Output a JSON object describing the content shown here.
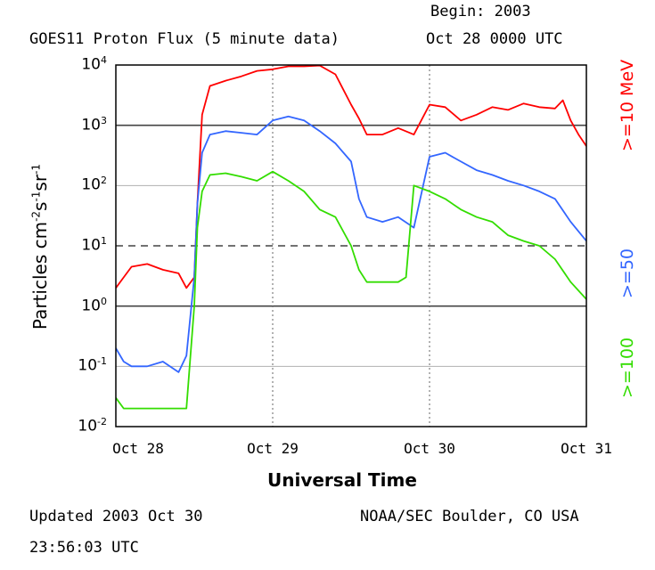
{
  "header": {
    "title": "GOES11 Proton Flux (5 minute data)",
    "begin_label": "Begin: 2003",
    "begin_date": "Oct 28 0000 UTC"
  },
  "footer": {
    "updated_line1": "Updated 2003 Oct 30",
    "updated_line2": "23:56:03 UTC",
    "credit": "NOAA/SEC Boulder, CO USA"
  },
  "chart_data": {
    "type": "line",
    "title": "GOES11 Proton Flux (5 minute data)",
    "xlabel": "Universal Time",
    "ylabel": "Particles cm⁻²s⁻¹sr⁻¹",
    "y_scale": "log",
    "ylim": [
      0.01,
      10000
    ],
    "xlim": [
      0,
      3
    ],
    "x_tick_labels": [
      "Oct 28",
      "Oct 29",
      "Oct 30",
      "Oct 31"
    ],
    "y_tick_labels": [
      {
        "base": "10",
        "exp": "-2"
      },
      {
        "base": "10",
        "exp": "-1"
      },
      {
        "base": "10",
        "exp": "0"
      },
      {
        "base": "10",
        "exp": "1"
      },
      {
        "base": "10",
        "exp": "2"
      },
      {
        "base": "10",
        "exp": "3"
      },
      {
        "base": "10",
        "exp": "4"
      }
    ],
    "legend": [
      "Colors: red, blue, green"
    ],
    "legend_entries": [
      {
        "label": ">=10 MeV",
        "color": "#ff0000"
      },
      {
        "label": ">=50",
        "color": "#3366ff"
      },
      {
        "label": ">=100",
        "color": "#33dd00"
      }
    ],
    "reference_lines": [
      {
        "y": 1000,
        "style": "solid"
      },
      {
        "y": 10,
        "style": "dashed"
      },
      {
        "y": 1,
        "style": "solid"
      }
    ],
    "series": [
      {
        "name": ">=10 MeV",
        "color": "#ff0000",
        "x": [
          0.0,
          0.05,
          0.1,
          0.2,
          0.3,
          0.4,
          0.45,
          0.5,
          0.52,
          0.55,
          0.6,
          0.7,
          0.8,
          0.9,
          1.0,
          1.1,
          1.2,
          1.3,
          1.4,
          1.5,
          1.55,
          1.6,
          1.7,
          1.8,
          1.9,
          2.0,
          2.1,
          2.2,
          2.3,
          2.4,
          2.5,
          2.6,
          2.7,
          2.8,
          2.85,
          2.9,
          2.95,
          3.0
        ],
        "y": [
          2,
          3,
          4.5,
          5,
          4,
          3.5,
          2,
          3,
          50,
          1500,
          4500,
          5500,
          6500,
          8000,
          8500,
          9500,
          9500,
          9800,
          7000,
          2200,
          1300,
          700,
          700,
          900,
          700,
          2200,
          2000,
          1200,
          1500,
          2000,
          1800,
          2300,
          2000,
          1900,
          2600,
          1200,
          700,
          450
        ]
      },
      {
        "name": ">=50",
        "color": "#3366ff",
        "x": [
          0.0,
          0.05,
          0.1,
          0.2,
          0.3,
          0.4,
          0.45,
          0.5,
          0.52,
          0.55,
          0.6,
          0.7,
          0.8,
          0.9,
          1.0,
          1.1,
          1.2,
          1.3,
          1.4,
          1.5,
          1.55,
          1.6,
          1.7,
          1.8,
          1.9,
          2.0,
          2.1,
          2.2,
          2.3,
          2.4,
          2.5,
          2.6,
          2.7,
          2.8,
          2.9,
          3.0
        ],
        "y": [
          0.2,
          0.12,
          0.1,
          0.1,
          0.12,
          0.08,
          0.15,
          3,
          50,
          350,
          700,
          800,
          750,
          700,
          1200,
          1400,
          1200,
          800,
          500,
          250,
          60,
          30,
          25,
          30,
          20,
          300,
          350,
          250,
          180,
          150,
          120,
          100,
          80,
          60,
          25,
          12
        ]
      },
      {
        "name": ">=100",
        "color": "#33dd00",
        "x": [
          0.0,
          0.05,
          0.1,
          0.2,
          0.3,
          0.4,
          0.45,
          0.5,
          0.52,
          0.55,
          0.6,
          0.7,
          0.8,
          0.9,
          1.0,
          1.1,
          1.2,
          1.3,
          1.4,
          1.5,
          1.55,
          1.6,
          1.7,
          1.8,
          1.85,
          1.9,
          2.0,
          2.1,
          2.2,
          2.3,
          2.4,
          2.5,
          2.6,
          2.7,
          2.8,
          2.9,
          3.0
        ],
        "y": [
          0.03,
          0.02,
          0.02,
          0.02,
          0.02,
          0.02,
          0.02,
          1,
          20,
          80,
          150,
          160,
          140,
          120,
          170,
          120,
          80,
          40,
          30,
          10,
          4,
          2.5,
          2.5,
          2.5,
          3,
          100,
          80,
          60,
          40,
          30,
          25,
          15,
          12,
          10,
          6,
          2.5,
          1.3
        ]
      }
    ]
  }
}
